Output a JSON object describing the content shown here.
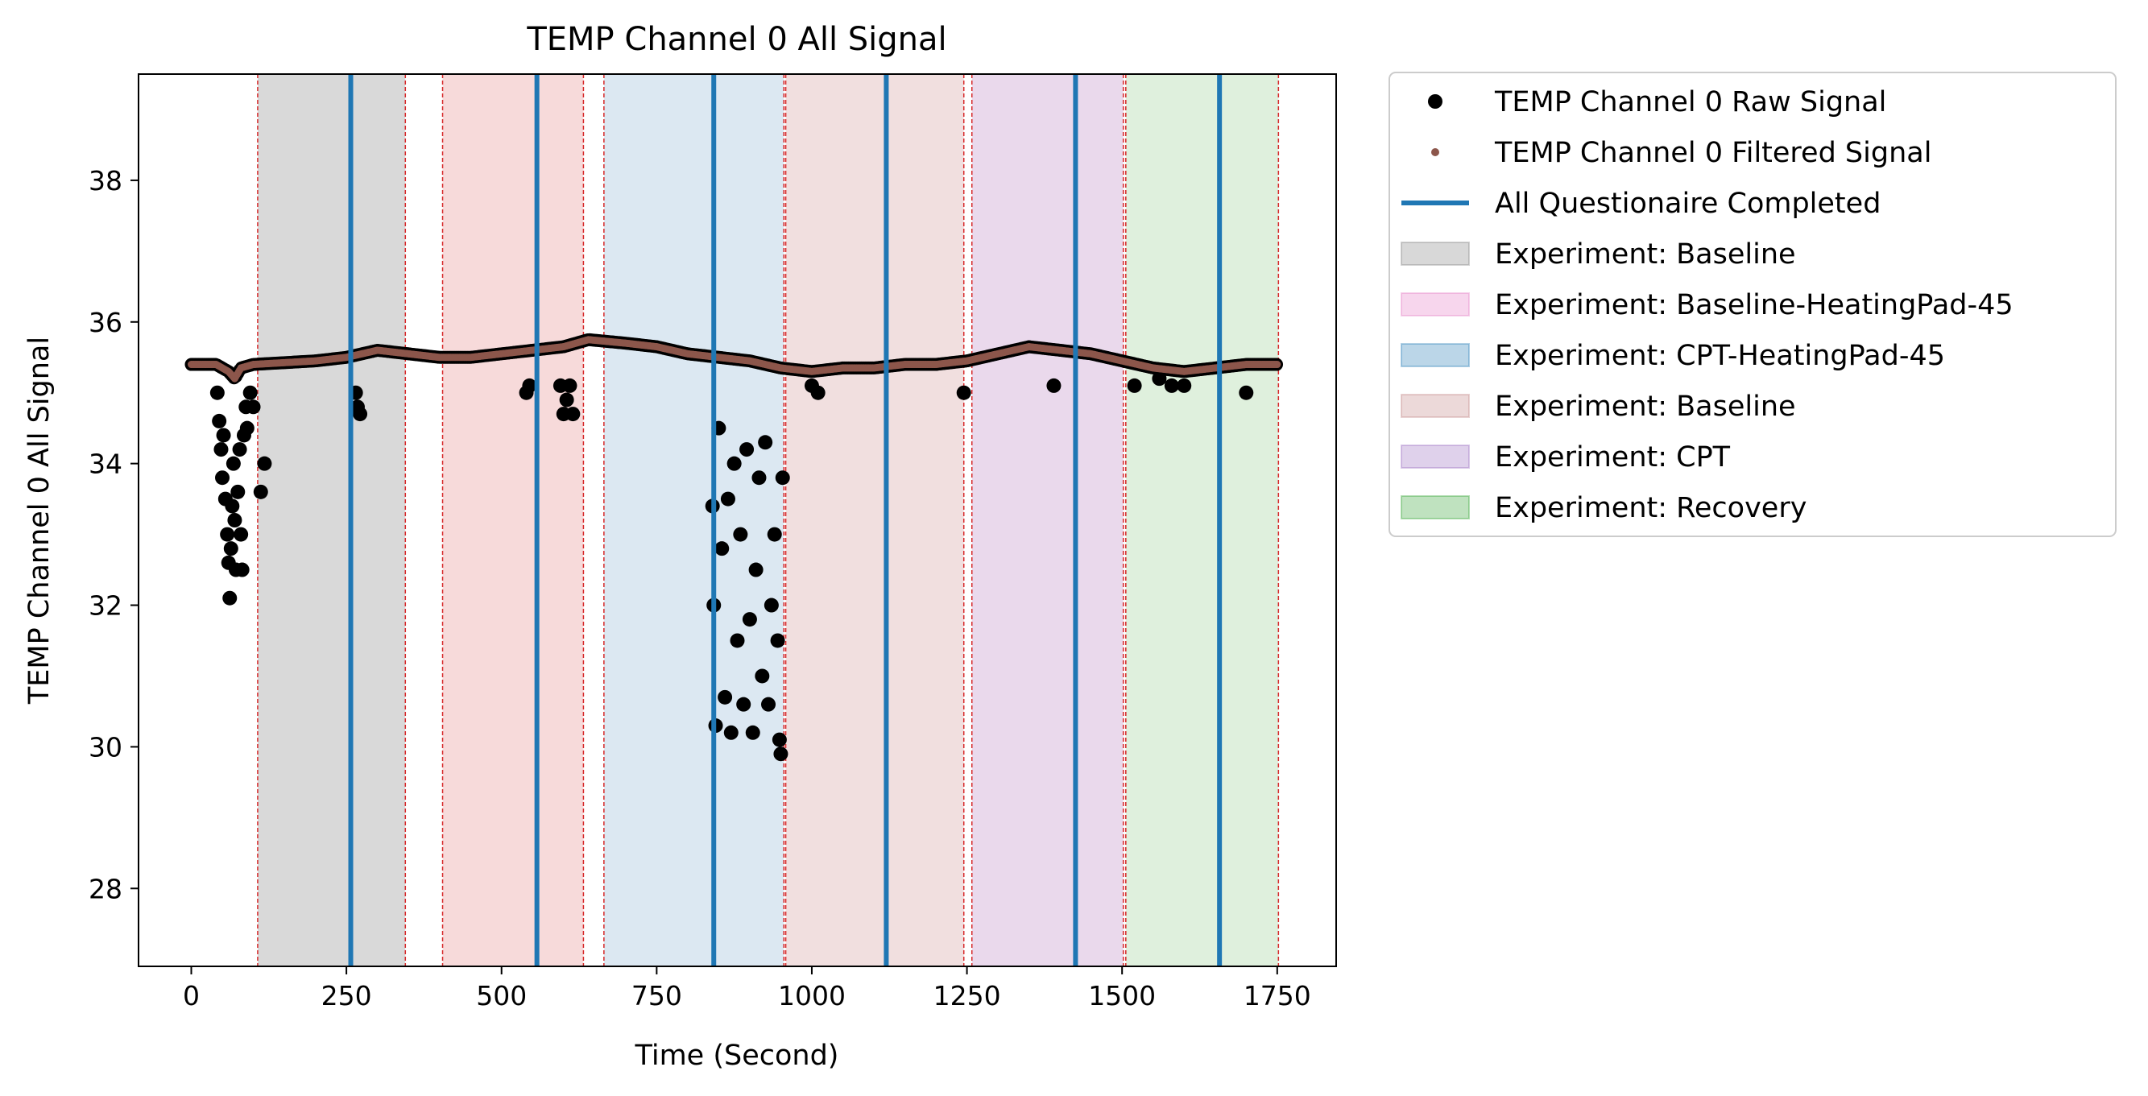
{
  "chart_data": {
    "type": "scatter",
    "title": "TEMP Channel 0 All Signal",
    "xlabel": "Time (Second)",
    "ylabel": "TEMP Channel 0 All Signal",
    "xlim": [
      -85,
      1845
    ],
    "ylim": [
      26.9,
      39.5
    ],
    "xticks": [
      0,
      250,
      500,
      750,
      1000,
      1250,
      1500,
      1750
    ],
    "yticks": [
      28,
      30,
      32,
      34,
      36,
      38
    ],
    "grid": false,
    "legend_position": "outside-right",
    "legend": [
      {
        "label": "TEMP Channel 0 Raw Signal",
        "kind": "marker",
        "color": "#000000"
      },
      {
        "label": "TEMP Channel 0 Filtered Signal",
        "kind": "smallmarker",
        "color": "#8c564b"
      },
      {
        "label": "All Questionaire Completed",
        "kind": "line",
        "color": "#1f77b4"
      },
      {
        "label": "Experiment: Baseline",
        "kind": "patch",
        "color": "#7f7f7f"
      },
      {
        "label": "Experiment: Baseline-HeatingPad-45",
        "kind": "patch",
        "color": "#e377c2"
      },
      {
        "label": "Experiment: CPT-HeatingPad-45",
        "kind": "patch",
        "color": "#1f77b4"
      },
      {
        "label": "Experiment: Baseline",
        "kind": "patch",
        "color": "#c08080"
      },
      {
        "label": "Experiment: CPT",
        "kind": "patch",
        "color": "#9467bd"
      },
      {
        "label": "Experiment: Recovery",
        "kind": "patch",
        "color": "#2ca02c"
      }
    ],
    "spans": [
      {
        "name": "Experiment: Baseline",
        "start": 107,
        "end": 345,
        "color": "#d9d9d9"
      },
      {
        "name": "Experiment: Baseline-HeatingPad-45",
        "start": 405,
        "end": 632,
        "color": "#f7dada"
      },
      {
        "name": "Experiment: CPT-HeatingPad-45",
        "start": 665,
        "end": 955,
        "color": "#dce8f2"
      },
      {
        "name": "Experiment: Baseline",
        "start": 958,
        "end": 1245,
        "color": "#f1dfdf"
      },
      {
        "name": "Experiment: CPT",
        "start": 1258,
        "end": 1502,
        "color": "#ead9ec"
      },
      {
        "name": "Experiment: Recovery",
        "start": 1506,
        "end": 1752,
        "color": "#dff0dd"
      }
    ],
    "span_edges": [
      107,
      345,
      405,
      632,
      665,
      955,
      958,
      1245,
      1258,
      1502,
      1506,
      1752
    ],
    "questionnaire_completed": [
      257,
      557,
      842,
      1120,
      1425,
      1657
    ],
    "series": [
      {
        "name": "TEMP Channel 0 Filtered Signal",
        "color": "#8c564b",
        "x": [
          0,
          40,
          60,
          70,
          80,
          100,
          200,
          250,
          300,
          350,
          400,
          450,
          500,
          550,
          600,
          640,
          700,
          750,
          800,
          850,
          900,
          950,
          1000,
          1050,
          1100,
          1150,
          1200,
          1250,
          1300,
          1350,
          1400,
          1450,
          1500,
          1550,
          1600,
          1650,
          1700,
          1750
        ],
        "y": [
          35.4,
          35.4,
          35.3,
          35.2,
          35.35,
          35.4,
          35.45,
          35.5,
          35.6,
          35.55,
          35.5,
          35.5,
          35.55,
          35.6,
          35.65,
          35.75,
          35.7,
          35.65,
          35.55,
          35.5,
          35.45,
          35.35,
          35.3,
          35.35,
          35.35,
          35.4,
          35.4,
          35.45,
          35.55,
          35.65,
          35.6,
          35.55,
          35.45,
          35.35,
          35.3,
          35.35,
          35.4,
          35.4
        ]
      },
      {
        "name": "TEMP Channel 0 Raw Signal",
        "color": "#000000",
        "x": [
          42,
          45,
          48,
          50,
          52,
          55,
          58,
          60,
          62,
          64,
          66,
          68,
          70,
          72,
          75,
          78,
          80,
          82,
          85,
          88,
          90,
          95,
          100,
          112,
          118,
          265,
          268,
          272,
          540,
          545,
          595,
          600,
          605,
          610,
          615,
          840,
          842,
          845,
          850,
          855,
          860,
          865,
          870,
          875,
          880,
          885,
          890,
          895,
          900,
          905,
          910,
          915,
          920,
          925,
          930,
          935,
          940,
          945,
          948,
          950,
          953,
          1000,
          1010,
          1245,
          1390,
          1520,
          1560,
          1580,
          1600,
          1700
        ],
        "y": [
          35.0,
          34.6,
          34.2,
          33.8,
          34.4,
          33.5,
          33.0,
          32.6,
          32.1,
          32.8,
          33.4,
          34.0,
          33.2,
          32.5,
          33.6,
          34.2,
          33.0,
          32.5,
          34.4,
          34.8,
          34.5,
          35.0,
          34.8,
          33.6,
          34.0,
          35.0,
          34.8,
          34.7,
          35.0,
          35.1,
          35.1,
          34.7,
          34.9,
          35.1,
          34.7,
          33.4,
          32.0,
          30.3,
          34.5,
          32.8,
          30.7,
          33.5,
          30.2,
          34.0,
          31.5,
          33.0,
          30.6,
          34.2,
          31.8,
          30.2,
          32.5,
          33.8,
          31.0,
          34.3,
          30.6,
          32.0,
          33.0,
          31.5,
          30.1,
          29.9,
          33.8,
          35.1,
          35.0,
          35.0,
          35.1,
          35.1,
          35.2,
          35.1,
          35.1,
          35.0
        ]
      }
    ]
  }
}
